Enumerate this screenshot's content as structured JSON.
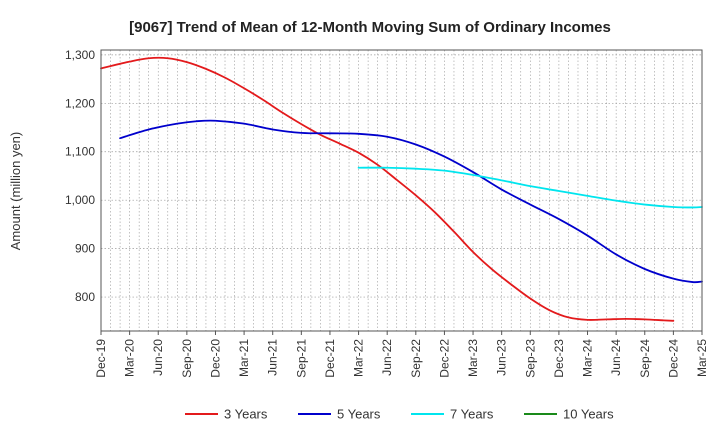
{
  "chart_data": {
    "type": "line",
    "title": "[9067]  Trend of Mean of 12-Month Moving Sum of Ordinary Incomes",
    "xlabel": "",
    "ylabel": "Amount (million yen)",
    "ylim": [
      730,
      1310
    ],
    "yticks": [
      800,
      900,
      1000,
      1100,
      1200,
      1300
    ],
    "ytick_labels": [
      "800",
      "900",
      "1,000",
      "1,100",
      "1,200",
      "1,300"
    ],
    "x_categories": [
      "Dec-19",
      "Mar-20",
      "Jun-20",
      "Sep-20",
      "Dec-20",
      "Mar-21",
      "Jun-21",
      "Sep-21",
      "Dec-21",
      "Mar-22",
      "Jun-22",
      "Sep-22",
      "Dec-22",
      "Mar-23",
      "Jun-23",
      "Sep-23",
      "Dec-23",
      "Mar-24",
      "Jun-24",
      "Sep-24",
      "Dec-24",
      "Mar-25"
    ],
    "x_unit": "month index from Dec-19",
    "x_range": [
      0,
      63
    ],
    "grid": true,
    "legend_position": "bottom",
    "series": [
      {
        "name": "3 Years",
        "color": "#e31a1c",
        "x": [
          0,
          3,
          5,
          7,
          9,
          11,
          13,
          15,
          17,
          19,
          21,
          23,
          25,
          27,
          29,
          31,
          33,
          35,
          37,
          39,
          41,
          43,
          45,
          47,
          49,
          51,
          53,
          55,
          57,
          59,
          60
        ],
        "values": [
          1272,
          1286,
          1293,
          1293,
          1285,
          1271,
          1253,
          1231,
          1207,
          1181,
          1157,
          1135,
          1117,
          1098,
          1073,
          1042,
          1010,
          975,
          935,
          893,
          857,
          826,
          797,
          773,
          758,
          753,
          754,
          755,
          754,
          752,
          751
        ]
      },
      {
        "name": "5 Years",
        "color": "#0000cc",
        "x": [
          2,
          5,
          8,
          10,
          12,
          15,
          18,
          21,
          24,
          27,
          30,
          33,
          36,
          39,
          42,
          45,
          48,
          51,
          54,
          57,
          60,
          62,
          63
        ],
        "values": [
          1128,
          1146,
          1158,
          1163,
          1164,
          1158,
          1146,
          1139,
          1138,
          1137,
          1131,
          1115,
          1090,
          1058,
          1022,
          991,
          961,
          927,
          888,
          858,
          838,
          831,
          832
        ]
      },
      {
        "name": "7 Years",
        "color": "#00e5ee",
        "x": [
          27,
          30,
          33,
          36,
          39,
          42,
          45,
          48,
          51,
          54,
          57,
          60,
          62,
          63
        ],
        "values": [
          1067,
          1067,
          1065,
          1061,
          1052,
          1041,
          1029,
          1019,
          1009,
          999,
          991,
          986,
          985,
          986
        ]
      },
      {
        "name": "10 Years",
        "color": "#1a8a1a",
        "x": [],
        "values": []
      }
    ]
  }
}
